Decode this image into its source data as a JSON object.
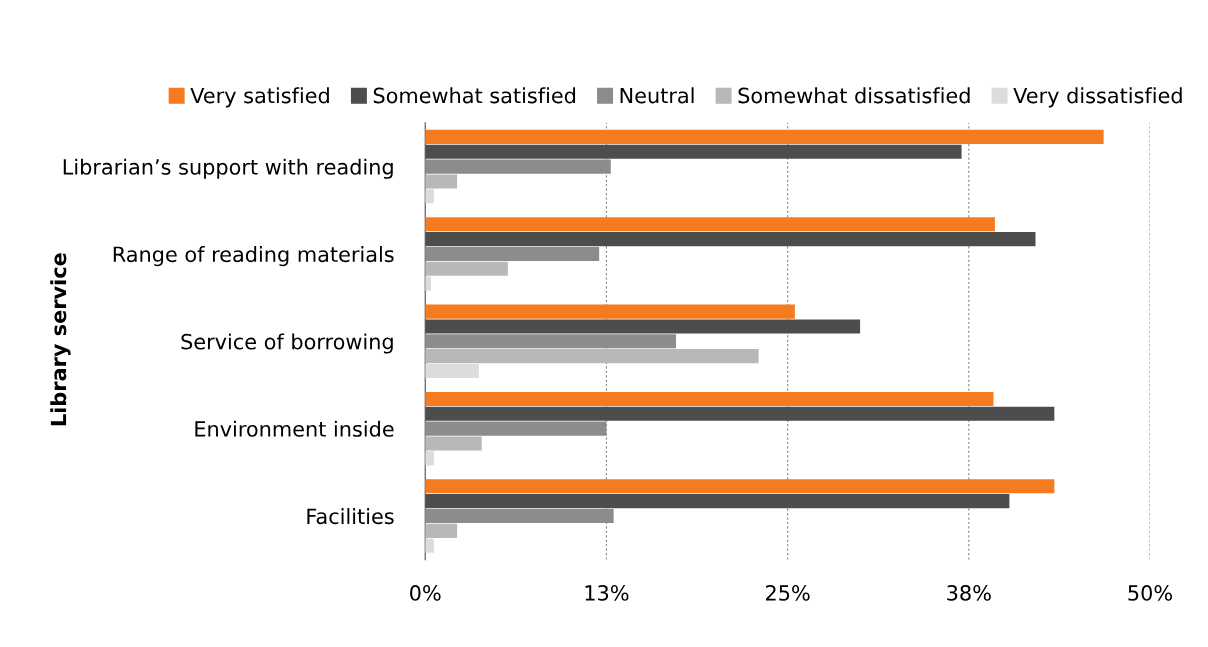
{
  "chart_data": {
    "type": "bar",
    "orientation": "horizontal",
    "ylabel": "Library service",
    "categories": [
      "Librarian’s support with reading",
      "Range of reading materials",
      "Service of borrowing",
      "Environment inside",
      "Facilities"
    ],
    "series": [
      {
        "name": "Very satisfied",
        "color": "#f47b20",
        "values": [
          46.8,
          39.3,
          25.5,
          39.2,
          43.4
        ]
      },
      {
        "name": "Somewhat satisfied",
        "color": "#4d4d4d",
        "values": [
          37.0,
          42.1,
          30.0,
          43.4,
          40.3
        ]
      },
      {
        "name": "Neutral",
        "color": "#8c8c8c",
        "values": [
          12.8,
          12.0,
          17.3,
          12.5,
          13.0
        ]
      },
      {
        "name": "Somewhat dissatisfied",
        "color": "#b8b8b8",
        "values": [
          2.2,
          5.7,
          23.0,
          3.9,
          2.2
        ]
      },
      {
        "name": "Very dissatisfied",
        "color": "#dcdcdc",
        "values": [
          0.6,
          0.4,
          3.7,
          0.6,
          0.6
        ]
      }
    ],
    "xlim": [
      0,
      50
    ],
    "xticks": [
      {
        "value": 0,
        "label": "0%"
      },
      {
        "value": 12.5,
        "label": "13%"
      },
      {
        "value": 25,
        "label": "25%"
      },
      {
        "value": 37.5,
        "label": "38%"
      },
      {
        "value": 50,
        "label": "50%"
      }
    ],
    "grid": "x",
    "legend": "top"
  }
}
